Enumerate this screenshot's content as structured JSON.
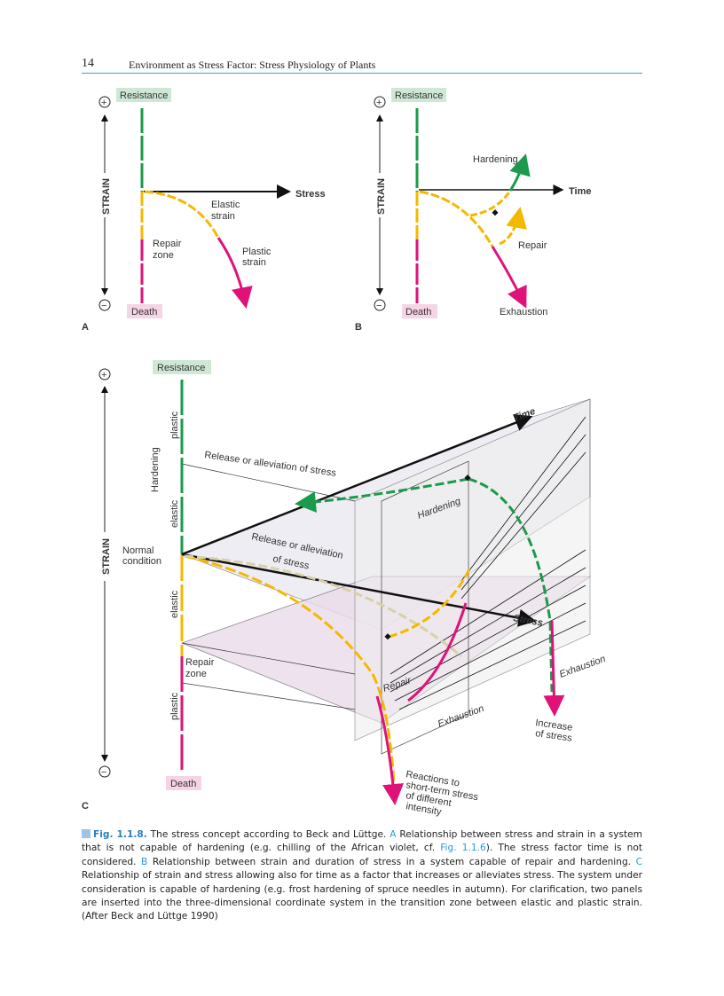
{
  "header": {
    "page_number": "14",
    "running_title": "Environment as Stress Factor: Stress Physiology of Plants"
  },
  "colors": {
    "resistance": "#1a9a4a",
    "elastic": "#f5b800",
    "plastic": "#e0127a",
    "rule": "#3aa0d8"
  },
  "panel_a": {
    "letter": "A",
    "resistance": "Resistance",
    "death": "Death",
    "plus": "+",
    "minus": "−",
    "strain": "STRAIN",
    "stress": "Stress",
    "elastic_1": "Elastic",
    "elastic_2": "strain",
    "repair_1": "Repair",
    "repair_2": "zone",
    "plastic_1": "Plastic",
    "plastic_2": "strain"
  },
  "panel_b": {
    "letter": "B",
    "resistance": "Resistance",
    "death": "Death",
    "plus": "+",
    "minus": "−",
    "strain": "STRAIN",
    "time": "Time",
    "hardening": "Hardening",
    "repair": "Repair",
    "exhaustion": "Exhaustion"
  },
  "panel_c": {
    "letter": "C",
    "resistance": "Resistance",
    "death": "Death",
    "plus": "+",
    "minus": "−",
    "strain": "STRAIN",
    "plastic_top": "plastic",
    "hardening_side": "Hardening",
    "elastic_top": "elastic",
    "normal_1": "Normal",
    "normal_2": "condition",
    "elastic_bottom": "elastic",
    "repair_1": "Repair",
    "repair_2": "zone",
    "plastic_bottom": "plastic",
    "release_1": "Release or alleviation of stress",
    "release_2a": "Release or alleviation",
    "release_2b": "of stress",
    "hardening_inner": "Hardening",
    "time": "Time",
    "stress": "Stress",
    "repair_inner": "Repair",
    "exhaustion_1": "Exhaustion",
    "exhaustion_2": "Exhaustion",
    "increase_1": "Increase",
    "increase_2": "of stress",
    "reactions_1": "Reactions to",
    "reactions_2": "short-term stress",
    "reactions_3": "of different",
    "reactions_4": "intensity"
  },
  "caption": {
    "fig": "Fig. 1.1.8.",
    "t1": " The stress concept according to Beck and Lüttge. ",
    "a": "A",
    "t2": " Relationship between stress and strain in a system that is not capable of hardening (e.g. chilling of the African violet, cf. ",
    "ref": "Fig. 1.1.6",
    "t3": "). The stress factor time is not considered. ",
    "b": "B",
    "t4": " Relationship between strain and duration of stress in a system capable of repair and hardening. ",
    "c": "C",
    "t5": " Relationship of strain and stress allowing also for time as a factor that increases or alleviates stress. The system under consideration is capable of hardening (e.g. frost hardening of spruce needles in autumn). For clarification, two panels are inserted into the three-dimensional coordinate system in the transition zone between elastic and plastic strain. (After Beck and Lüttge 1990)"
  }
}
